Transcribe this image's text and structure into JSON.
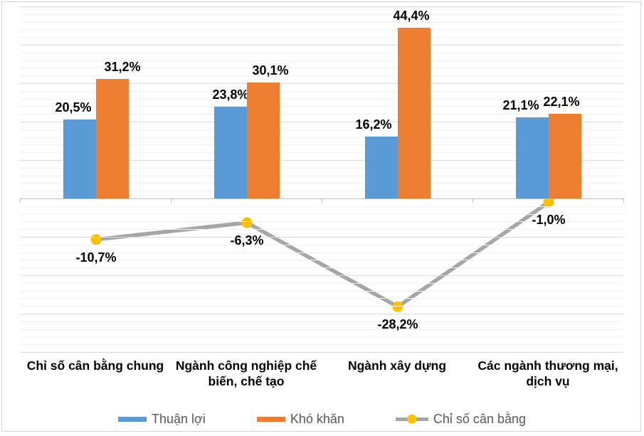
{
  "chart_data": {
    "type": "bar",
    "subtype": "grouped-bars-with-line-overlay",
    "categories": [
      "Chỉ số cân bằng chung",
      "Ngành công nghiệp chế biến, chế tạo",
      "Ngành xây dựng",
      "Các ngành thương mại, dịch vụ"
    ],
    "series": [
      {
        "name": "Thuận lợi",
        "type": "bar",
        "color": "#5B9BD5",
        "values": [
          20.5,
          23.8,
          16.2,
          21.1
        ],
        "labels": [
          "20,5%",
          "23,8%",
          "16,2%",
          "21,1%"
        ]
      },
      {
        "name": "Khó khăn",
        "type": "bar",
        "color": "#ED7D31",
        "values": [
          31.2,
          30.1,
          44.4,
          22.1
        ],
        "labels": [
          "31,2%",
          "30,1%",
          "44,4%",
          "22,1%"
        ]
      },
      {
        "name": "Chỉ số cân bằng",
        "type": "line",
        "color": "#A6A6A6",
        "marker_color": "#FFC000",
        "values": [
          -10.7,
          -6.3,
          -28.2,
          -1.0
        ],
        "labels": [
          "-10,7%",
          "-6,3%",
          "-28,2%",
          "-1,0%"
        ]
      }
    ],
    "title": "",
    "xlabel": "",
    "ylabel": "",
    "ylim": [
      -40,
      50
    ],
    "grid": {
      "minor_step": 2,
      "major_step": 10,
      "visible": true
    },
    "y_axis_tick_labels_visible": false,
    "legend_position": "bottom"
  }
}
